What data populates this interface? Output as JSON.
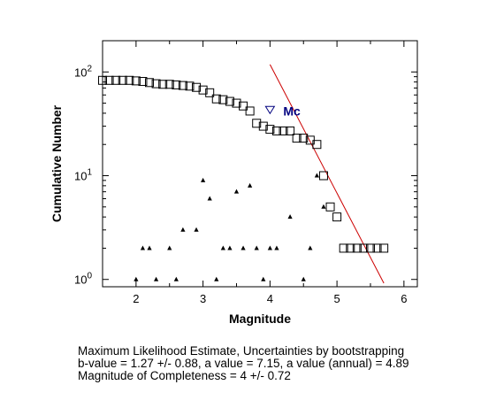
{
  "chart_data": {
    "type": "scatter",
    "xlabel": "Magnitude",
    "ylabel": "Cumulative Number",
    "xlim": [
      1.5,
      6.2
    ],
    "ylim": [
      0.85,
      200
    ],
    "yscale": "log",
    "x_ticks": [
      2,
      3,
      4,
      5,
      6
    ],
    "y_ticks": [
      {
        "value": 1,
        "base": "10",
        "exp": "0"
      },
      {
        "value": 10,
        "base": "10",
        "exp": "1"
      },
      {
        "value": 100,
        "base": "10",
        "exp": "2"
      }
    ],
    "grid": false,
    "series": [
      {
        "marker": "square",
        "color": "#000000",
        "x": [
          1.5,
          1.6,
          1.7,
          1.8,
          1.9,
          2.0,
          2.1,
          2.2,
          2.3,
          2.4,
          2.5,
          2.6,
          2.7,
          2.8,
          2.9,
          3.0,
          3.1,
          3.2,
          3.3,
          3.4,
          3.5,
          3.6,
          3.7,
          3.8,
          3.9,
          4.0,
          4.1,
          4.2,
          4.3,
          4.4,
          4.5,
          4.6,
          4.7,
          4.8,
          4.9,
          5.0,
          5.1,
          5.2,
          5.3,
          5.4,
          5.5,
          5.6,
          5.7
        ],
        "y": [
          83,
          83,
          83,
          83,
          83,
          82,
          81,
          79,
          77,
          76,
          76,
          75,
          74,
          73,
          71,
          67,
          63,
          55,
          54,
          52,
          50,
          47,
          42,
          32,
          30,
          28,
          27,
          27,
          27,
          23,
          23,
          22,
          20,
          10,
          5,
          4,
          2,
          2,
          2,
          2,
          2,
          2,
          2
        ]
      },
      {
        "marker": "triangle",
        "color": "#000000",
        "x": [
          2.0,
          2.1,
          2.2,
          2.3,
          2.5,
          2.6,
          2.7,
          2.9,
          3.0,
          3.1,
          3.2,
          3.3,
          3.4,
          3.5,
          3.6,
          3.7,
          3.8,
          3.9,
          4.0,
          4.1,
          4.3,
          4.5,
          4.6,
          4.7,
          4.8
        ],
        "y": [
          1,
          2,
          2,
          1,
          2,
          1,
          3,
          3,
          9,
          6,
          1,
          2,
          2,
          7,
          2,
          8,
          2,
          1,
          2,
          2,
          4,
          1,
          2,
          10,
          5
        ]
      }
    ],
    "fit_line": {
      "color": "#cc0000",
      "x": [
        4.0,
        5.7
      ],
      "y": [
        118,
        0.92
      ]
    },
    "mc": {
      "label": "Mc",
      "x": 4.0,
      "y": 43,
      "color": "#00007f"
    },
    "caption": [
      "Maximum Likelihood Estimate, Uncertainties by bootstrapping",
      "b-value = 1.27 +/- 0.88,  a value = 7.15,  a value (annual) = 4.89",
      "Magnitude of Completeness = 4 +/- 0.72"
    ]
  }
}
